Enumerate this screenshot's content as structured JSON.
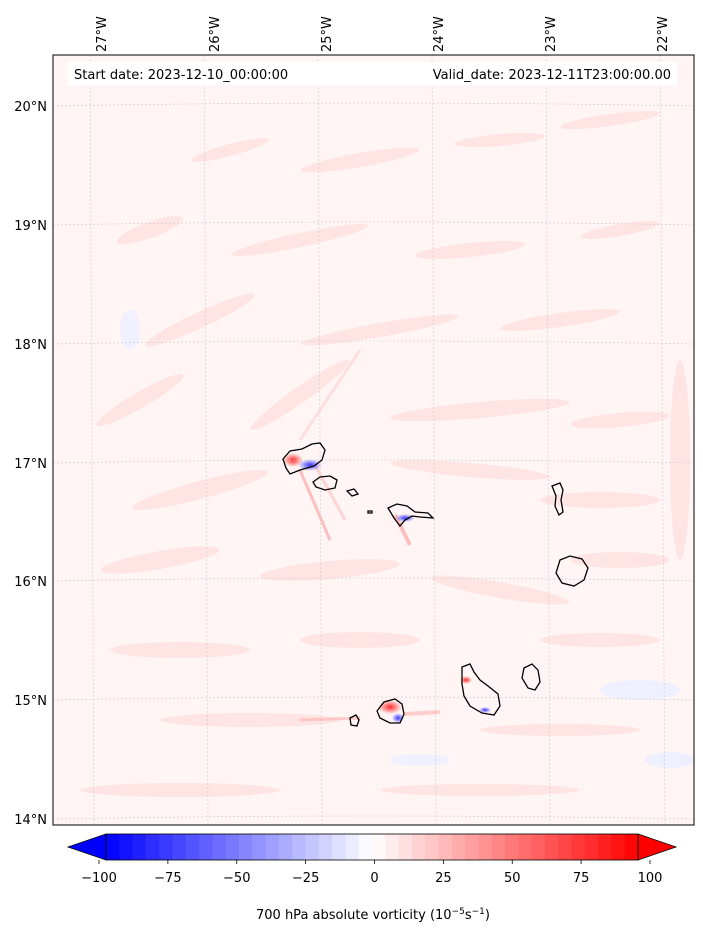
{
  "header": {
    "start_date": "Start date: 2023-12-10_00:00:00",
    "valid_date": "Valid_date: 2023-12-11T23:00:00.00"
  },
  "axes": {
    "lon_labels": [
      "27°W",
      "26°W",
      "25°W",
      "24°W",
      "23°W",
      "22°W"
    ],
    "lat_labels": [
      "20°N",
      "19°N",
      "18°N",
      "17°N",
      "16°N",
      "15°N",
      "14°N"
    ]
  },
  "colorbar": {
    "label_prefix": "700 hPa absolute vorticity (10",
    "label_exp1": "−5",
    "label_mid": "s",
    "label_exp2": "−1",
    "label_suffix": ")",
    "ticks": [
      "−100",
      "−75",
      "−50",
      "−25",
      "0",
      "25",
      "50",
      "75",
      "100"
    ],
    "min": -100,
    "max": 100,
    "negative_color": "#0000ff",
    "zero_color": "#ffffff",
    "positive_color": "#ff0000"
  },
  "map": {
    "background_color": "#fff6f6",
    "coastline_color": "#000000",
    "gridline_color": "#c8c8c8"
  }
}
